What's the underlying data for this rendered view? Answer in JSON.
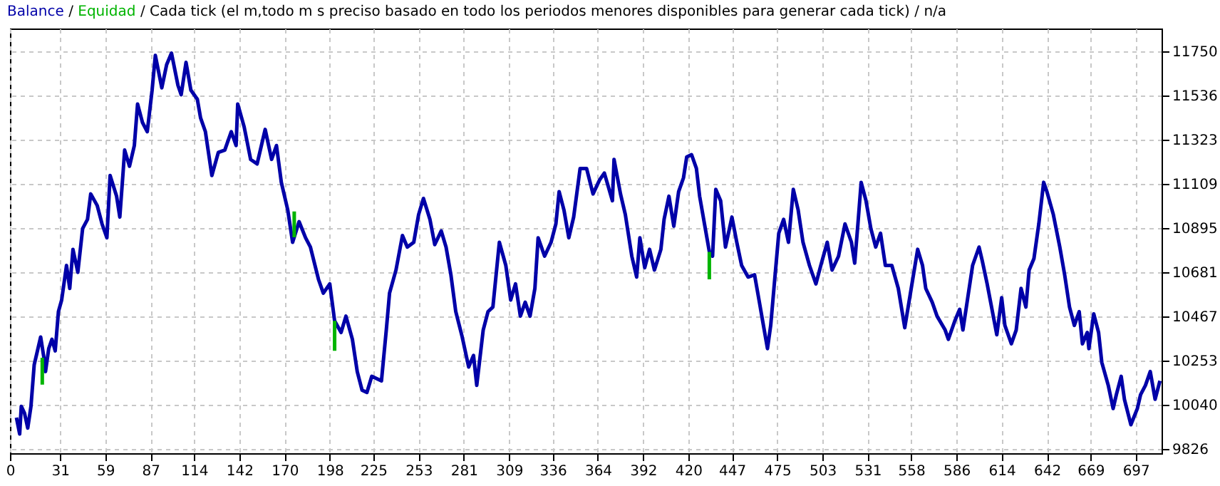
{
  "chart_data": {
    "type": "line",
    "title": "Cada tick (el m,todo m s preciso basado en todo los periodos menores disponibles para generar cada tick)",
    "annotations": [
      "/",
      "/",
      "/",
      "n/a"
    ],
    "legend": "top left",
    "grid": true,
    "line_style": "solid",
    "xlim": [
      0,
      713
    ],
    "xticks": [
      0,
      31,
      59,
      87,
      114,
      142,
      170,
      198,
      225,
      253,
      281,
      309,
      336,
      364,
      392,
      420,
      447,
      475,
      503,
      531,
      558,
      586,
      614,
      642,
      669,
      697
    ],
    "ylim": [
      9806,
      11860
    ],
    "yticks": [
      9826,
      10040,
      10253,
      10467,
      10681,
      10895,
      11109,
      11323,
      11536,
      11750
    ],
    "x": [
      4,
      6,
      7,
      9,
      11,
      13,
      15,
      17,
      19,
      21,
      22,
      24,
      26,
      28,
      30,
      32,
      35,
      37,
      39,
      42,
      45,
      48,
      50,
      54,
      57,
      60,
      62,
      66,
      68,
      70,
      71,
      74,
      77,
      79,
      82,
      85,
      88,
      90,
      94,
      97,
      100,
      104,
      106,
      109,
      112,
      116,
      118,
      121,
      125,
      129,
      133,
      137,
      140,
      141,
      145,
      149,
      153,
      158,
      162,
      165,
      168,
      172,
      175,
      179,
      183,
      186,
      191,
      194,
      198,
      201,
      205,
      208,
      212,
      215,
      218,
      221,
      224,
      230,
      233,
      235,
      239,
      243,
      246,
      250,
      253,
      256,
      260,
      263,
      267,
      270,
      273,
      276,
      280,
      284,
      287,
      289,
      293,
      296,
      299,
      303,
      307,
      310,
      313,
      316,
      319,
      322,
      325,
      327,
      331,
      335,
      338,
      340,
      343,
      346,
      349,
      353,
      357,
      361,
      365,
      368,
      373,
      374,
      378,
      381,
      385,
      388,
      390,
      393,
      396,
      399,
      403,
      405,
      408,
      411,
      414,
      417,
      419,
      422,
      425,
      427,
      430,
      433,
      435,
      437,
      440,
      443,
      447,
      450,
      453,
      457,
      461,
      464,
      466,
      469,
      471,
      473,
      476,
      479,
      482,
      485,
      488,
      491,
      495,
      499,
      502,
      506,
      509,
      513,
      517,
      521,
      523,
      525,
      527,
      530,
      533,
      536,
      539,
      542,
      546,
      550,
      554,
      558,
      562,
      565,
      567,
      571,
      574,
      579,
      581,
      585,
      588,
      590,
      593,
      596,
      600,
      602,
      605,
      611,
      614,
      616,
      620,
      623,
      626,
      629,
      631,
      634,
      637,
      640,
      642,
      646,
      650,
      653,
      656,
      659,
      662,
      664,
      667,
      668,
      671,
      674,
      676,
      680,
      683,
      685,
      688,
      690,
      694,
      698,
      700,
      703,
      706,
      709,
      712
    ],
    "series": [
      {
        "name": "Balance",
        "color": "#0000a8",
        "values": [
          9978,
          9899,
          10033,
          10000,
          9928,
          10033,
          10234,
          10301,
          10368,
          10268,
          10201,
          10312,
          10357,
          10301,
          10491,
          10547,
          10714,
          10603,
          10792,
          10681,
          10893,
          10937,
          11060,
          11004,
          10915,
          10848,
          11149,
          11049,
          10948,
          11161,
          11272,
          11194,
          11294,
          11495,
          11406,
          11361,
          11562,
          11730,
          11573,
          11685,
          11741,
          11585,
          11540,
          11696,
          11562,
          11518,
          11428,
          11361,
          11149,
          11261,
          11272,
          11361,
          11294,
          11495,
          11384,
          11227,
          11205,
          11372,
          11227,
          11294,
          11116,
          10982,
          10826,
          10926,
          10848,
          10803,
          10647,
          10580,
          10625,
          10446,
          10390,
          10469,
          10357,
          10201,
          10111,
          10100,
          10178,
          10156,
          10402,
          10580,
          10692,
          10859,
          10803,
          10826,
          10960,
          11038,
          10937,
          10815,
          10881,
          10803,
          10669,
          10491,
          10368,
          10223,
          10279,
          10134,
          10402,
          10491,
          10513,
          10826,
          10714,
          10547,
          10625,
          10469,
          10536,
          10469,
          10603,
          10848,
          10759,
          10826,
          10915,
          11071,
          10982,
          10848,
          10948,
          11183,
          11183,
          11060,
          11127,
          11161,
          11027,
          11227,
          11060,
          10960,
          10759,
          10658,
          10848,
          10703,
          10792,
          10692,
          10792,
          10937,
          11049,
          10904,
          11071,
          11138,
          11239,
          11250,
          11183,
          11049,
          10915,
          10781,
          10759,
          11082,
          11027,
          10803,
          10948,
          10826,
          10714,
          10658,
          10669,
          10536,
          10446,
          10312,
          10424,
          10603,
          10870,
          10937,
          10826,
          11082,
          10982,
          10826,
          10714,
          10625,
          10714,
          10826,
          10692,
          10759,
          10915,
          10826,
          10725,
          10915,
          11116,
          11027,
          10893,
          10803,
          10870,
          10714,
          10714,
          10603,
          10413,
          10603,
          10792,
          10714,
          10603,
          10536,
          10469,
          10402,
          10357,
          10446,
          10502,
          10402,
          10558,
          10714,
          10803,
          10736,
          10625,
          10379,
          10558,
          10424,
          10335,
          10402,
          10603,
          10513,
          10692,
          10748,
          10915,
          11116,
          11071,
          10960,
          10803,
          10669,
          10513,
          10424,
          10491,
          10335,
          10390,
          10312,
          10480,
          10390,
          10245,
          10134,
          10022,
          10089,
          10178,
          10067,
          9944,
          10022,
          10089,
          10134,
          10201,
          10067,
          10156
        ]
      },
      {
        "name": "Equidad",
        "color": "#00b400",
        "x": [
          20,
          20,
          100,
          176,
          176,
          180,
          201,
          201,
          300,
          433,
          433
        ],
        "values": [
          10268,
          10138,
          null,
          10850,
          10975,
          null,
          10446,
          10301,
          null,
          10780,
          10647
        ]
      }
    ]
  }
}
